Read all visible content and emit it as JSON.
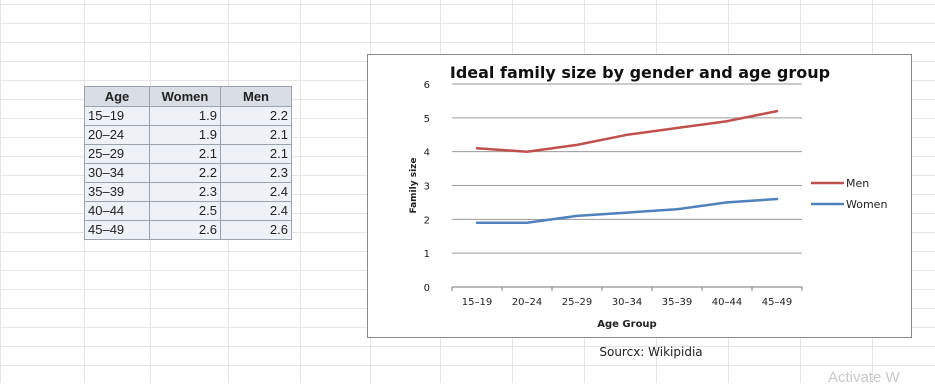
{
  "table": {
    "headers": [
      "Age",
      "Women",
      "Men"
    ],
    "rows": [
      [
        "15–19",
        "1.9",
        "2.2"
      ],
      [
        "20–24",
        "1.9",
        "2.1"
      ],
      [
        "25–29",
        "2.1",
        "2.1"
      ],
      [
        "30–34",
        "2.2",
        "2.3"
      ],
      [
        "35–39",
        "2.3",
        "2.4"
      ],
      [
        "40–44",
        "2.5",
        "2.4"
      ],
      [
        "45–49",
        "2.6",
        "2.6"
      ]
    ]
  },
  "chart_data": {
    "type": "line",
    "title": "Ideal family size by gender and age group",
    "xlabel": "Age Group",
    "ylabel": "Family size",
    "categories": [
      "15–19",
      "20–24",
      "25–29",
      "30–34",
      "35–39",
      "40–44",
      "45–49"
    ],
    "ylim": [
      0,
      6
    ],
    "yticks": [
      0,
      1,
      2,
      3,
      4,
      5,
      6
    ],
    "grid": true,
    "legend_position": "right",
    "series": [
      {
        "name": "Men",
        "color": "#c0504d",
        "values": [
          4.1,
          4.0,
          4.2,
          4.5,
          4.7,
          4.9,
          5.2
        ]
      },
      {
        "name": "Women",
        "color": "#4f81bd",
        "values": [
          1.9,
          1.9,
          2.1,
          2.2,
          2.3,
          2.5,
          2.6
        ]
      }
    ]
  },
  "source_note": "Sourcx: Wikipidia",
  "watermark": "Activate W"
}
